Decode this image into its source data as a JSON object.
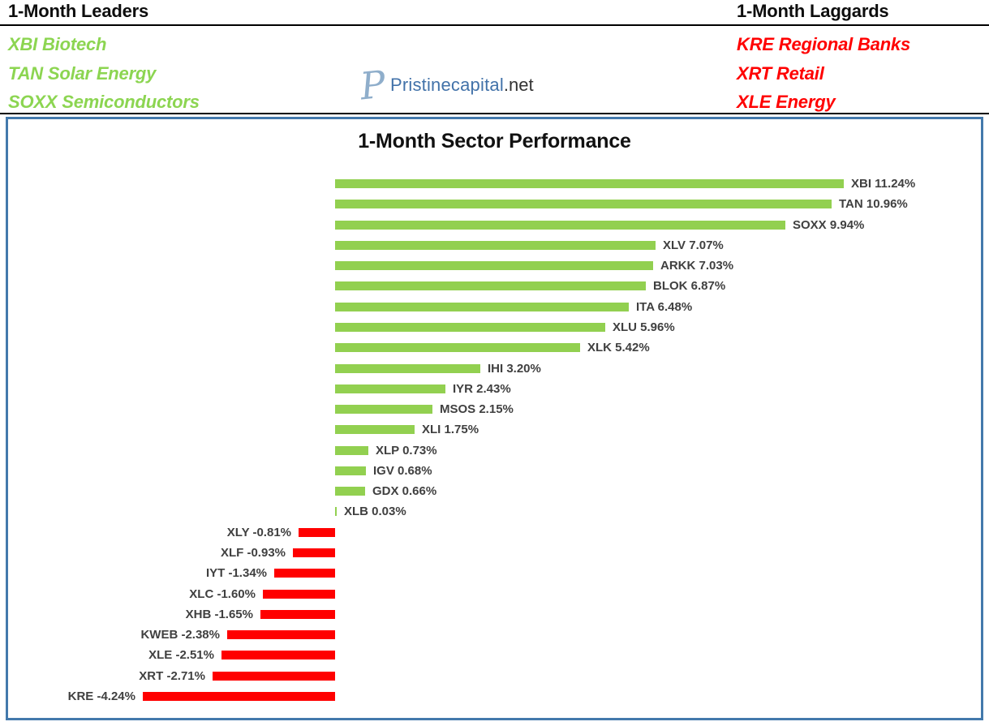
{
  "header": {
    "leaders": {
      "title": "1-Month Leaders",
      "items": [
        "XBI Biotech",
        "TAN Solar Energy",
        "SOXX Semiconductors"
      ]
    },
    "laggards": {
      "title": "1-Month Laggards",
      "items": [
        "KRE Regional Banks",
        "XRT Retail",
        "XLE Energy"
      ]
    },
    "logo": {
      "monogram": "P",
      "name": "Pristinecapital",
      "suffix": ".net"
    }
  },
  "chart_data": {
    "type": "bar",
    "orientation": "horizontal",
    "title": "1-Month Sector Performance",
    "xlabel": "",
    "ylabel": "",
    "xlim": [
      -5,
      12.5
    ],
    "grid": false,
    "axis_lines": false,
    "bars": [
      {
        "ticker": "XBI",
        "value": 11.24,
        "label": "XBI 11.24%"
      },
      {
        "ticker": "TAN",
        "value": 10.96,
        "label": "TAN 10.96%"
      },
      {
        "ticker": "SOXX",
        "value": 9.94,
        "label": "SOXX 9.94%"
      },
      {
        "ticker": "XLV",
        "value": 7.07,
        "label": "XLV 7.07%"
      },
      {
        "ticker": "ARKK",
        "value": 7.03,
        "label": "ARKK 7.03%"
      },
      {
        "ticker": "BLOK",
        "value": 6.87,
        "label": "BLOK 6.87%"
      },
      {
        "ticker": "ITA",
        "value": 6.48,
        "label": "ITA 6.48%"
      },
      {
        "ticker": "XLU",
        "value": 5.96,
        "label": "XLU 5.96%"
      },
      {
        "ticker": "XLK",
        "value": 5.42,
        "label": "XLK 5.42%"
      },
      {
        "ticker": "IHI",
        "value": 3.2,
        "label": "IHI 3.20%"
      },
      {
        "ticker": "IYR",
        "value": 2.43,
        "label": "IYR 2.43%"
      },
      {
        "ticker": "MSOS",
        "value": 2.15,
        "label": "MSOS 2.15%"
      },
      {
        "ticker": "XLI",
        "value": 1.75,
        "label": "XLI 1.75%"
      },
      {
        "ticker": "XLP",
        "value": 0.73,
        "label": "XLP 0.73%"
      },
      {
        "ticker": "IGV",
        "value": 0.68,
        "label": "IGV 0.68%"
      },
      {
        "ticker": "GDX",
        "value": 0.66,
        "label": "GDX 0.66%"
      },
      {
        "ticker": "XLB",
        "value": 0.03,
        "label": "XLB 0.03%"
      },
      {
        "ticker": "XLY",
        "value": -0.81,
        "label": "XLY -0.81%"
      },
      {
        "ticker": "XLF",
        "value": -0.93,
        "label": "XLF -0.93%"
      },
      {
        "ticker": "IYT",
        "value": -1.34,
        "label": "IYT -1.34%"
      },
      {
        "ticker": "XLC",
        "value": -1.6,
        "label": "XLC -1.60%"
      },
      {
        "ticker": "XHB",
        "value": -1.65,
        "label": "XHB -1.65%"
      },
      {
        "ticker": "KWEB",
        "value": -2.38,
        "label": "KWEB -2.38%"
      },
      {
        "ticker": "XLE",
        "value": -2.51,
        "label": "XLE -2.51%"
      },
      {
        "ticker": "XRT",
        "value": -2.71,
        "label": "XRT -2.71%"
      },
      {
        "ticker": "KRE",
        "value": -4.24,
        "label": "KRE -4.24%"
      }
    ],
    "colors": {
      "positive_bar": "#92D050",
      "negative_bar": "#FF0000",
      "bar_label": "#404040"
    },
    "legend": null
  },
  "colors": {
    "leaders_text": "#8CD551",
    "laggards_text": "#FF0000",
    "panel_border": "#4379AC",
    "logo_blue": "#4272A9",
    "logo_monogram_blue": "#8FAECB",
    "rule_black": "#000000"
  }
}
